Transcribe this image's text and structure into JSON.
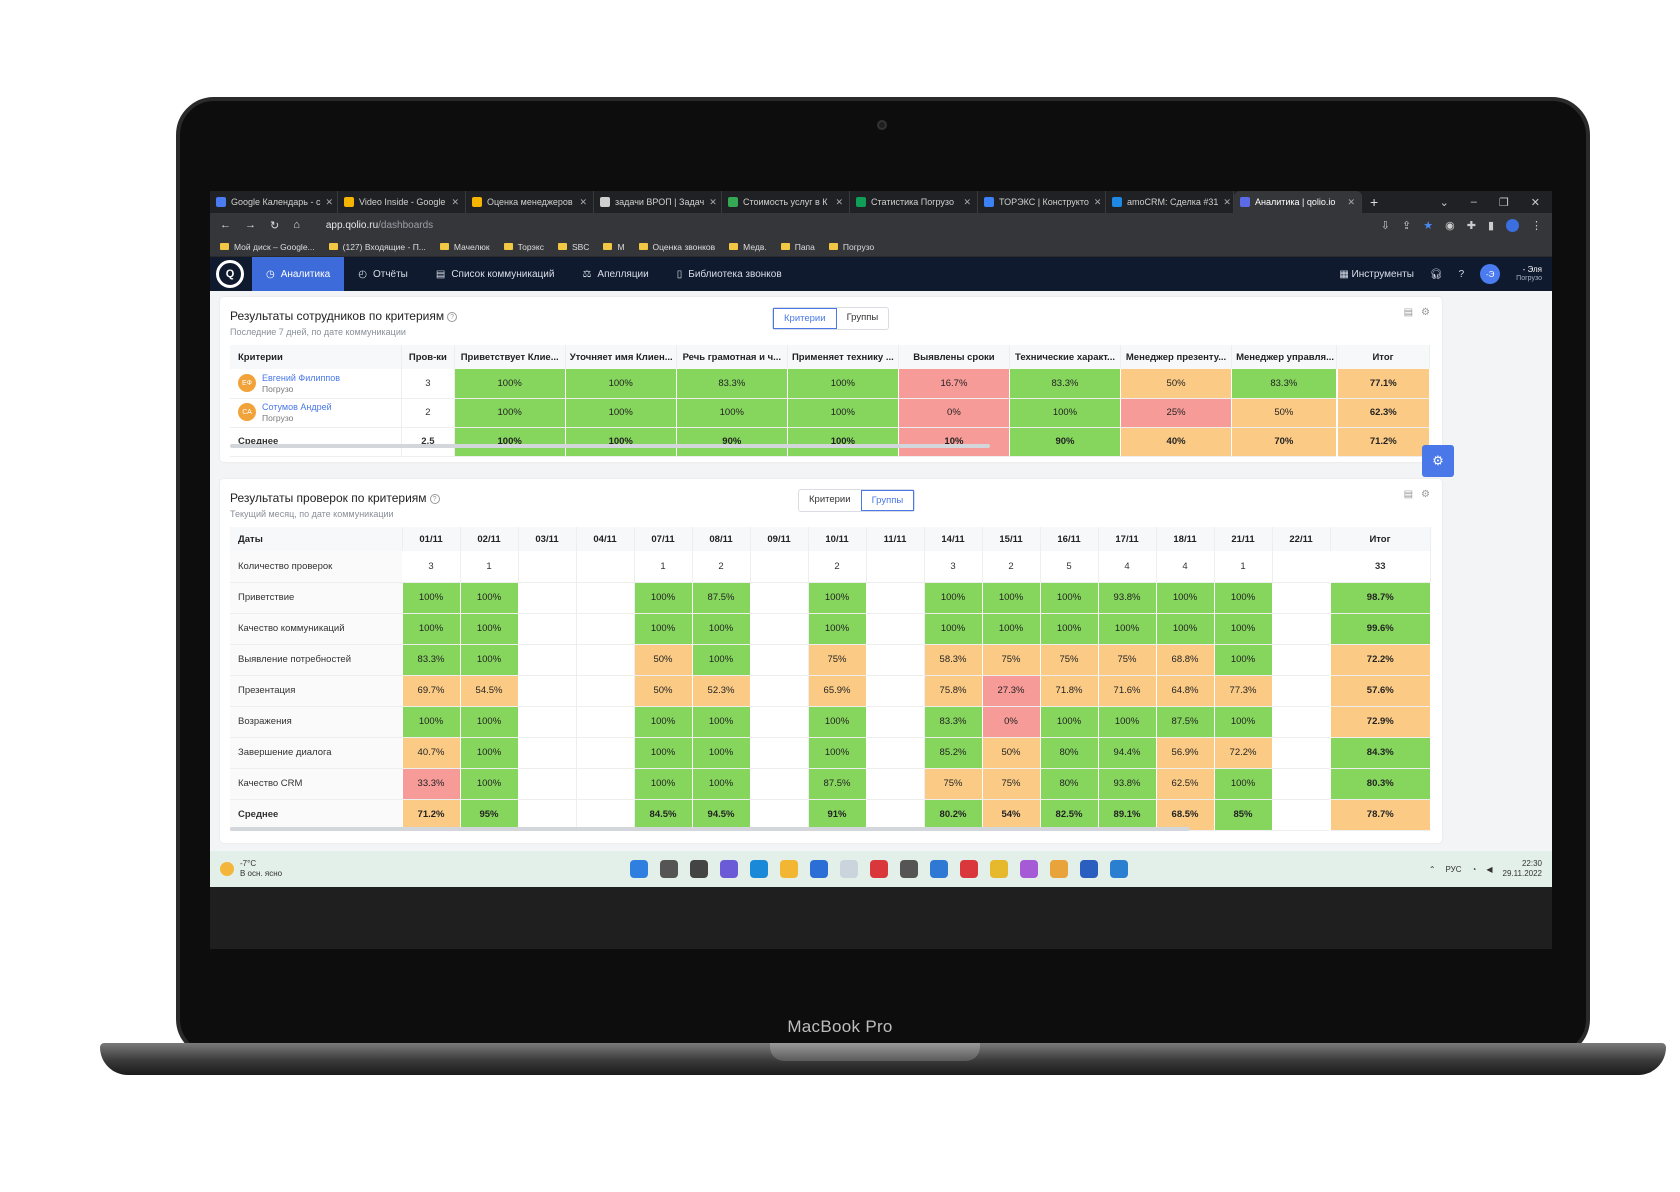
{
  "device_label": "MacBook Pro",
  "browser": {
    "tabs": [
      {
        "title": "Google Календарь - с",
        "color": "#4a7bf0"
      },
      {
        "title": "Video Inside - Google",
        "color": "#f4b400"
      },
      {
        "title": "Оценка менеджеров",
        "color": "#f4b400"
      },
      {
        "title": "задачи ВРОП | Задач",
        "color": "#cfcfcf"
      },
      {
        "title": "Стоимость услуг в К",
        "color": "#34a853"
      },
      {
        "title": "Статистика Погрузо",
        "color": "#0f9d58"
      },
      {
        "title": "ТОРЭКС | Конструкто",
        "color": "#3b82f6"
      },
      {
        "title": "amoCRM: Сделка #31",
        "color": "#1e88e5"
      },
      {
        "title": "Аналитика | qolio.io",
        "color": "#5b6be8"
      }
    ],
    "url_host": "app.qolio.ru",
    "url_path": "/dashboards",
    "bookmarks": [
      "Мой диск – Google...",
      "(127) Входящие - П...",
      "Мачелюк",
      "Торэкс",
      "SBC",
      "M",
      "Оценка звонков",
      "Медв.",
      "Папа",
      "Погрузо"
    ]
  },
  "nav": {
    "logo": "Q",
    "items": [
      "Аналитика",
      "Отчёты",
      "Список коммуникаций",
      "Апелляции",
      "Библиотека звонков"
    ],
    "tools": "Инструменты",
    "user_name": "- Эля",
    "user_org": "Погрузо",
    "avatar": "-Э"
  },
  "card1": {
    "title": "Результаты сотрудников по критериям",
    "subtitle": "Последние 7 дней, по дате коммуникации",
    "toggle": [
      "Критерии",
      "Группы"
    ],
    "headers": [
      "Критерии",
      "Пров-ки",
      "Приветствует Клие...",
      "Уточняет имя Клиен...",
      "Речь грамотная и ч...",
      "Применяет технику ...",
      "Выявлены сроки",
      "Технические характ...",
      "Менеджер презенту...",
      "Менеджер управля...",
      "Итог"
    ],
    "rows": [
      {
        "initials": "ЕФ",
        "name": "Евгений Филиппов",
        "org": "Погрузо",
        "checks": "3",
        "cells": [
          [
            "100%",
            "g"
          ],
          [
            "100%",
            "g"
          ],
          [
            "83.3%",
            "g"
          ],
          [
            "100%",
            "g"
          ],
          [
            "16.7%",
            "r"
          ],
          [
            "83.3%",
            "g"
          ],
          [
            "50%",
            "o"
          ],
          [
            "83.3%",
            "g"
          ]
        ],
        "total": [
          "77.1%",
          "o"
        ]
      },
      {
        "initials": "СА",
        "name": "Сотумов Андрей",
        "org": "Погрузо",
        "checks": "2",
        "cells": [
          [
            "100%",
            "g"
          ],
          [
            "100%",
            "g"
          ],
          [
            "100%",
            "g"
          ],
          [
            "100%",
            "g"
          ],
          [
            "0%",
            "r"
          ],
          [
            "100%",
            "g"
          ],
          [
            "25%",
            "r"
          ],
          [
            "50%",
            "o"
          ]
        ],
        "total": [
          "62.3%",
          "o"
        ]
      }
    ],
    "avg": {
      "label": "Среднее",
      "checks": "2.5",
      "cells": [
        [
          "100%",
          "g"
        ],
        [
          "100%",
          "g"
        ],
        [
          "90%",
          "g"
        ],
        [
          "100%",
          "g"
        ],
        [
          "10%",
          "r"
        ],
        [
          "90%",
          "g"
        ],
        [
          "40%",
          "o"
        ],
        [
          "70%",
          "o"
        ]
      ],
      "total": [
        "71.2%",
        "o"
      ]
    }
  },
  "card2": {
    "title": "Результаты проверок по критериям",
    "subtitle": "Текущий месяц, по дате коммуникации",
    "toggle": [
      "Критерии",
      "Группы"
    ],
    "dates_label": "Даты",
    "dates": [
      "01/11",
      "02/11",
      "03/11",
      "04/11",
      "07/11",
      "08/11",
      "09/11",
      "10/11",
      "11/11",
      "14/11",
      "15/11",
      "16/11",
      "17/11",
      "18/11",
      "21/11",
      "22/11"
    ],
    "total_label": "Итог",
    "count_row": {
      "label": "Количество проверок",
      "values": [
        "3",
        "1",
        "",
        "",
        "1",
        "2",
        "",
        "2",
        "",
        "3",
        "2",
        "5",
        "4",
        "4",
        "1",
        ""
      ],
      "total": "33"
    },
    "rows": [
      {
        "label": "Приветствие",
        "cells": [
          [
            "100%",
            "g"
          ],
          [
            "100%",
            "g"
          ],
          [
            "",
            ""
          ],
          [
            "",
            ""
          ],
          [
            "100%",
            "g"
          ],
          [
            "87.5%",
            "g"
          ],
          [
            "",
            ""
          ],
          [
            "100%",
            "g"
          ],
          [
            "",
            ""
          ],
          [
            "100%",
            "g"
          ],
          [
            "100%",
            "g"
          ],
          [
            "100%",
            "g"
          ],
          [
            "93.8%",
            "g"
          ],
          [
            "100%",
            "g"
          ],
          [
            "100%",
            "g"
          ],
          [
            "",
            ""
          ]
        ],
        "total": [
          "98.7%",
          "g"
        ]
      },
      {
        "label": "Качество коммуникаций",
        "cells": [
          [
            "100%",
            "g"
          ],
          [
            "100%",
            "g"
          ],
          [
            "",
            ""
          ],
          [
            "",
            ""
          ],
          [
            "100%",
            "g"
          ],
          [
            "100%",
            "g"
          ],
          [
            "",
            ""
          ],
          [
            "100%",
            "g"
          ],
          [
            "",
            ""
          ],
          [
            "100%",
            "g"
          ],
          [
            "100%",
            "g"
          ],
          [
            "100%",
            "g"
          ],
          [
            "100%",
            "g"
          ],
          [
            "100%",
            "g"
          ],
          [
            "100%",
            "g"
          ],
          [
            "",
            ""
          ]
        ],
        "total": [
          "99.6%",
          "g"
        ]
      },
      {
        "label": "Выявление потребностей",
        "cells": [
          [
            "83.3%",
            "g"
          ],
          [
            "100%",
            "g"
          ],
          [
            "",
            ""
          ],
          [
            "",
            ""
          ],
          [
            "50%",
            "o"
          ],
          [
            "100%",
            "g"
          ],
          [
            "",
            ""
          ],
          [
            "75%",
            "o"
          ],
          [
            "",
            ""
          ],
          [
            "58.3%",
            "o"
          ],
          [
            "75%",
            "o"
          ],
          [
            "75%",
            "o"
          ],
          [
            "75%",
            "o"
          ],
          [
            "68.8%",
            "o"
          ],
          [
            "100%",
            "g"
          ],
          [
            "",
            ""
          ]
        ],
        "total": [
          "72.2%",
          "o"
        ]
      },
      {
        "label": "Презентация",
        "cells": [
          [
            "69.7%",
            "o"
          ],
          [
            "54.5%",
            "o"
          ],
          [
            "",
            ""
          ],
          [
            "",
            ""
          ],
          [
            "50%",
            "o"
          ],
          [
            "52.3%",
            "o"
          ],
          [
            "",
            ""
          ],
          [
            "65.9%",
            "o"
          ],
          [
            "",
            ""
          ],
          [
            "75.8%",
            "o"
          ],
          [
            "27.3%",
            "r"
          ],
          [
            "71.8%",
            "o"
          ],
          [
            "71.6%",
            "o"
          ],
          [
            "64.8%",
            "o"
          ],
          [
            "77.3%",
            "o"
          ],
          [
            "",
            ""
          ]
        ],
        "total": [
          "57.6%",
          "o"
        ]
      },
      {
        "label": "Возражения",
        "cells": [
          [
            "100%",
            "g"
          ],
          [
            "100%",
            "g"
          ],
          [
            "",
            ""
          ],
          [
            "",
            ""
          ],
          [
            "100%",
            "g"
          ],
          [
            "100%",
            "g"
          ],
          [
            "",
            ""
          ],
          [
            "100%",
            "g"
          ],
          [
            "",
            ""
          ],
          [
            "83.3%",
            "g"
          ],
          [
            "0%",
            "r"
          ],
          [
            "100%",
            "g"
          ],
          [
            "100%",
            "g"
          ],
          [
            "87.5%",
            "g"
          ],
          [
            "100%",
            "g"
          ],
          [
            "",
            ""
          ]
        ],
        "total": [
          "72.9%",
          "o"
        ]
      },
      {
        "label": "Завершение диалога",
        "cells": [
          [
            "40.7%",
            "o"
          ],
          [
            "100%",
            "g"
          ],
          [
            "",
            ""
          ],
          [
            "",
            ""
          ],
          [
            "100%",
            "g"
          ],
          [
            "100%",
            "g"
          ],
          [
            "",
            ""
          ],
          [
            "100%",
            "g"
          ],
          [
            "",
            ""
          ],
          [
            "85.2%",
            "g"
          ],
          [
            "50%",
            "o"
          ],
          [
            "80%",
            "g"
          ],
          [
            "94.4%",
            "g"
          ],
          [
            "56.9%",
            "o"
          ],
          [
            "72.2%",
            "o"
          ],
          [
            "",
            ""
          ]
        ],
        "total": [
          "84.3%",
          "g"
        ]
      },
      {
        "label": "Качество CRM",
        "cells": [
          [
            "33.3%",
            "r"
          ],
          [
            "100%",
            "g"
          ],
          [
            "",
            ""
          ],
          [
            "",
            ""
          ],
          [
            "100%",
            "g"
          ],
          [
            "100%",
            "g"
          ],
          [
            "",
            ""
          ],
          [
            "87.5%",
            "g"
          ],
          [
            "",
            ""
          ],
          [
            "75%",
            "o"
          ],
          [
            "75%",
            "o"
          ],
          [
            "80%",
            "g"
          ],
          [
            "93.8%",
            "g"
          ],
          [
            "62.5%",
            "o"
          ],
          [
            "100%",
            "g"
          ],
          [
            "",
            ""
          ]
        ],
        "total": [
          "80.3%",
          "g"
        ]
      }
    ],
    "avg": {
      "label": "Среднее",
      "cells": [
        [
          "71.2%",
          "o"
        ],
        [
          "95%",
          "g"
        ],
        [
          "",
          ""
        ],
        [
          "",
          ""
        ],
        [
          "84.5%",
          "g"
        ],
        [
          "94.5%",
          "g"
        ],
        [
          "",
          ""
        ],
        [
          "91%",
          "g"
        ],
        [
          "",
          ""
        ],
        [
          "80.2%",
          "g"
        ],
        [
          "54%",
          "o"
        ],
        [
          "82.5%",
          "g"
        ],
        [
          "89.1%",
          "g"
        ],
        [
          "68.5%",
          "o"
        ],
        [
          "85%",
          "g"
        ],
        [
          "",
          ""
        ]
      ],
      "total": [
        "78.7%",
        "o"
      ]
    }
  },
  "taskbar": {
    "temp": "-7°C",
    "weather": "В осн. ясно",
    "lang": "РУС",
    "time": "22:30",
    "date": "29.11.2022"
  }
}
